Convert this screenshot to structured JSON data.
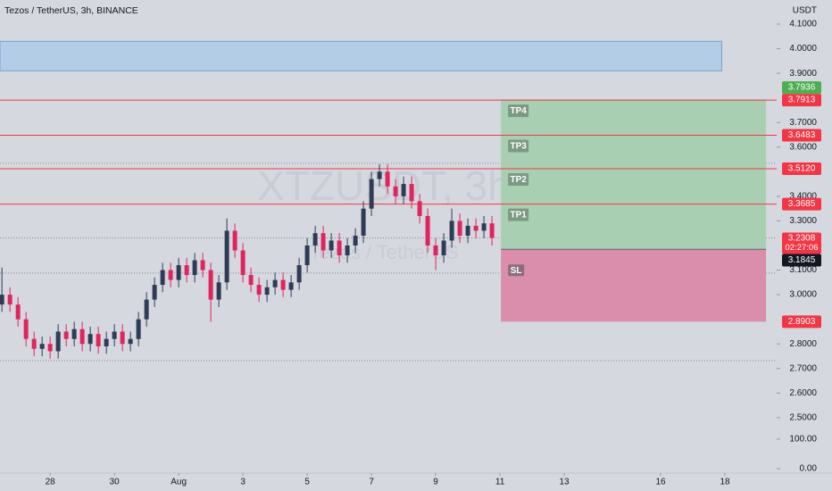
{
  "chart_data": {
    "type": "candlestick",
    "title": "Tezos / TetherUS, 3h, BINANCE",
    "watermark": "XTZUSDT, 3h",
    "watermark_sub": "Tezos / TetherUS",
    "y_unit": "USDT",
    "xlim": [
      26.44,
      50.61
    ],
    "ylim": [
      2.456,
      4.198
    ],
    "xticks": [
      28,
      30,
      {
        "value": 32,
        "label": "Aug"
      },
      {
        "value": 34,
        "label": "3"
      },
      {
        "value": 36,
        "label": "5"
      },
      {
        "value": 38,
        "label": "7"
      },
      {
        "value": 40,
        "label": "9"
      },
      {
        "value": 42,
        "label": "11"
      },
      {
        "value": 44,
        "label": "13"
      },
      {
        "value": 47,
        "label": "16"
      },
      {
        "value": 49,
        "label": "18"
      }
    ],
    "yticks": [
      {
        "value": 4.1,
        "label": "4.1000"
      },
      {
        "value": 4.0,
        "label": "4.0000"
      },
      {
        "value": 3.9,
        "label": "3.9000"
      },
      {
        "value": 3.7,
        "label": "3.7000"
      },
      {
        "value": 3.6,
        "label": "3.6000"
      },
      {
        "value": 3.4,
        "label": "3.4000"
      },
      {
        "value": 3.3,
        "label": "3.3000"
      },
      {
        "value": 3.1,
        "label": "3.1000"
      },
      {
        "value": 3.0,
        "label": "3.0000"
      },
      {
        "value": 2.8,
        "label": "2.8000"
      },
      {
        "value": 2.7,
        "label": "2.7000"
      },
      {
        "value": 2.6,
        "label": "2.6000"
      },
      {
        "value": 2.5,
        "label": "2.5000"
      }
    ],
    "lower_pane": {
      "ylim": [
        -15,
        130
      ],
      "yticks": [
        {
          "value": 100,
          "label": "100.00"
        },
        {
          "value": 0,
          "label": "0.00"
        }
      ]
    },
    "up_color": "#2f3b57",
    "down_color": "#e0245e",
    "x": [
      26.5,
      26.75,
      27,
      27.25,
      27.5,
      27.75,
      28,
      28.25,
      28.5,
      28.75,
      29,
      29.25,
      29.5,
      29.75,
      30,
      30.25,
      30.5,
      30.75,
      31,
      31.25,
      31.5,
      31.75,
      32,
      32.25,
      32.5,
      32.75,
      33,
      33.25,
      33.5,
      33.75,
      34,
      34.25,
      34.5,
      34.75,
      35,
      35.25,
      35.5,
      35.75,
      36,
      36.25,
      36.5,
      36.75,
      37,
      37.25,
      37.5,
      37.75,
      38,
      38.25,
      38.5,
      38.75,
      39,
      39.25,
      39.5,
      39.75,
      40,
      40.25,
      40.5,
      40.75,
      41,
      41.25,
      41.5,
      41.75
    ],
    "open": [
      2.96,
      3.0,
      2.96,
      2.9,
      2.82,
      2.78,
      2.8,
      2.77,
      2.85,
      2.82,
      2.86,
      2.8,
      2.84,
      2.79,
      2.82,
      2.85,
      2.8,
      2.82,
      2.9,
      2.98,
      3.04,
      3.1,
      3.06,
      3.12,
      3.08,
      3.14,
      3.1,
      2.98,
      3.05,
      3.26,
      3.18,
      3.08,
      3.04,
      3.0,
      3.03,
      3.06,
      3.02,
      3.05,
      3.12,
      3.2,
      3.25,
      3.18,
      3.22,
      3.16,
      3.2,
      3.24,
      3.35,
      3.47,
      3.5,
      3.44,
      3.4,
      3.45,
      3.38,
      3.32,
      3.2,
      3.16,
      3.22,
      3.3,
      3.24,
      3.28,
      3.26,
      3.29
    ],
    "high": [
      3.11,
      3.03,
      2.99,
      2.93,
      2.85,
      2.83,
      2.83,
      2.88,
      2.88,
      2.89,
      2.89,
      2.87,
      2.87,
      2.85,
      2.88,
      2.88,
      2.85,
      2.93,
      3.01,
      3.07,
      3.13,
      3.13,
      3.15,
      3.15,
      3.17,
      3.17,
      3.13,
      3.08,
      3.31,
      3.29,
      3.21,
      3.11,
      3.07,
      3.06,
      3.09,
      3.09,
      3.08,
      3.15,
      3.23,
      3.28,
      3.28,
      3.25,
      3.25,
      3.23,
      3.27,
      3.38,
      3.5,
      3.53,
      3.53,
      3.47,
      3.48,
      3.48,
      3.41,
      3.35,
      3.23,
      3.25,
      3.35,
      3.33,
      3.31,
      3.31,
      3.32,
      3.32
    ],
    "low": [
      2.93,
      2.93,
      2.87,
      2.79,
      2.75,
      2.75,
      2.74,
      2.74,
      2.79,
      2.79,
      2.77,
      2.77,
      2.76,
      2.76,
      2.79,
      2.77,
      2.77,
      2.79,
      2.87,
      2.95,
      3.01,
      3.03,
      3.03,
      3.05,
      3.05,
      3.07,
      2.89,
      2.95,
      3.02,
      3.15,
      3.05,
      3.01,
      2.97,
      2.97,
      3.0,
      2.99,
      2.99,
      3.02,
      3.09,
      3.17,
      3.15,
      3.15,
      3.13,
      3.13,
      3.17,
      3.21,
      3.32,
      3.44,
      3.41,
      3.37,
      3.37,
      3.35,
      3.29,
      3.17,
      3.1,
      3.13,
      3.19,
      3.21,
      3.21,
      3.23,
      3.23,
      3.2
    ],
    "close": [
      3.0,
      2.96,
      2.9,
      2.82,
      2.78,
      2.8,
      2.77,
      2.85,
      2.82,
      2.86,
      2.8,
      2.84,
      2.79,
      2.82,
      2.85,
      2.8,
      2.82,
      2.9,
      2.98,
      3.04,
      3.1,
      3.06,
      3.12,
      3.08,
      3.14,
      3.1,
      2.98,
      3.05,
      3.26,
      3.18,
      3.08,
      3.04,
      3.0,
      3.03,
      3.06,
      3.02,
      3.05,
      3.12,
      3.2,
      3.25,
      3.18,
      3.22,
      3.16,
      3.2,
      3.24,
      3.35,
      3.47,
      3.5,
      3.44,
      3.4,
      3.45,
      3.38,
      3.32,
      3.2,
      3.16,
      3.22,
      3.3,
      3.24,
      3.28,
      3.26,
      3.29,
      3.2308
    ],
    "zone": {
      "top": 4.03,
      "bottom": 3.91,
      "x_end": 48.9,
      "color": "#b4cde6"
    },
    "levels": [
      {
        "tag": "TP4",
        "value": 3.7913,
        "label": "3.7913"
      },
      {
        "tag": "TP3",
        "value": 3.6483,
        "label": "3.6483"
      },
      {
        "tag": "TP2",
        "value": 3.512,
        "label": "3.5120"
      },
      {
        "tag": "TP1",
        "value": 3.3685,
        "label": "3.3685"
      }
    ],
    "level_color": "#f23645",
    "dotted_levels": [
      3.534,
      3.088,
      2.732
    ],
    "current": {
      "value": 3.2308,
      "label": "3.2308",
      "countdown": "02:27:06"
    },
    "position": {
      "x_start": 42.03,
      "x_end": 50.28,
      "target": 3.7936,
      "target_label": "3.7936",
      "target_color": "#4caf50",
      "entry": 3.1845,
      "entry_label": "3.1845",
      "stop": 2.8903,
      "stop_label": "2.8903",
      "stop_tag": "SL",
      "profit_color": "#a9cfb2",
      "loss_color": "#db8eab"
    }
  }
}
